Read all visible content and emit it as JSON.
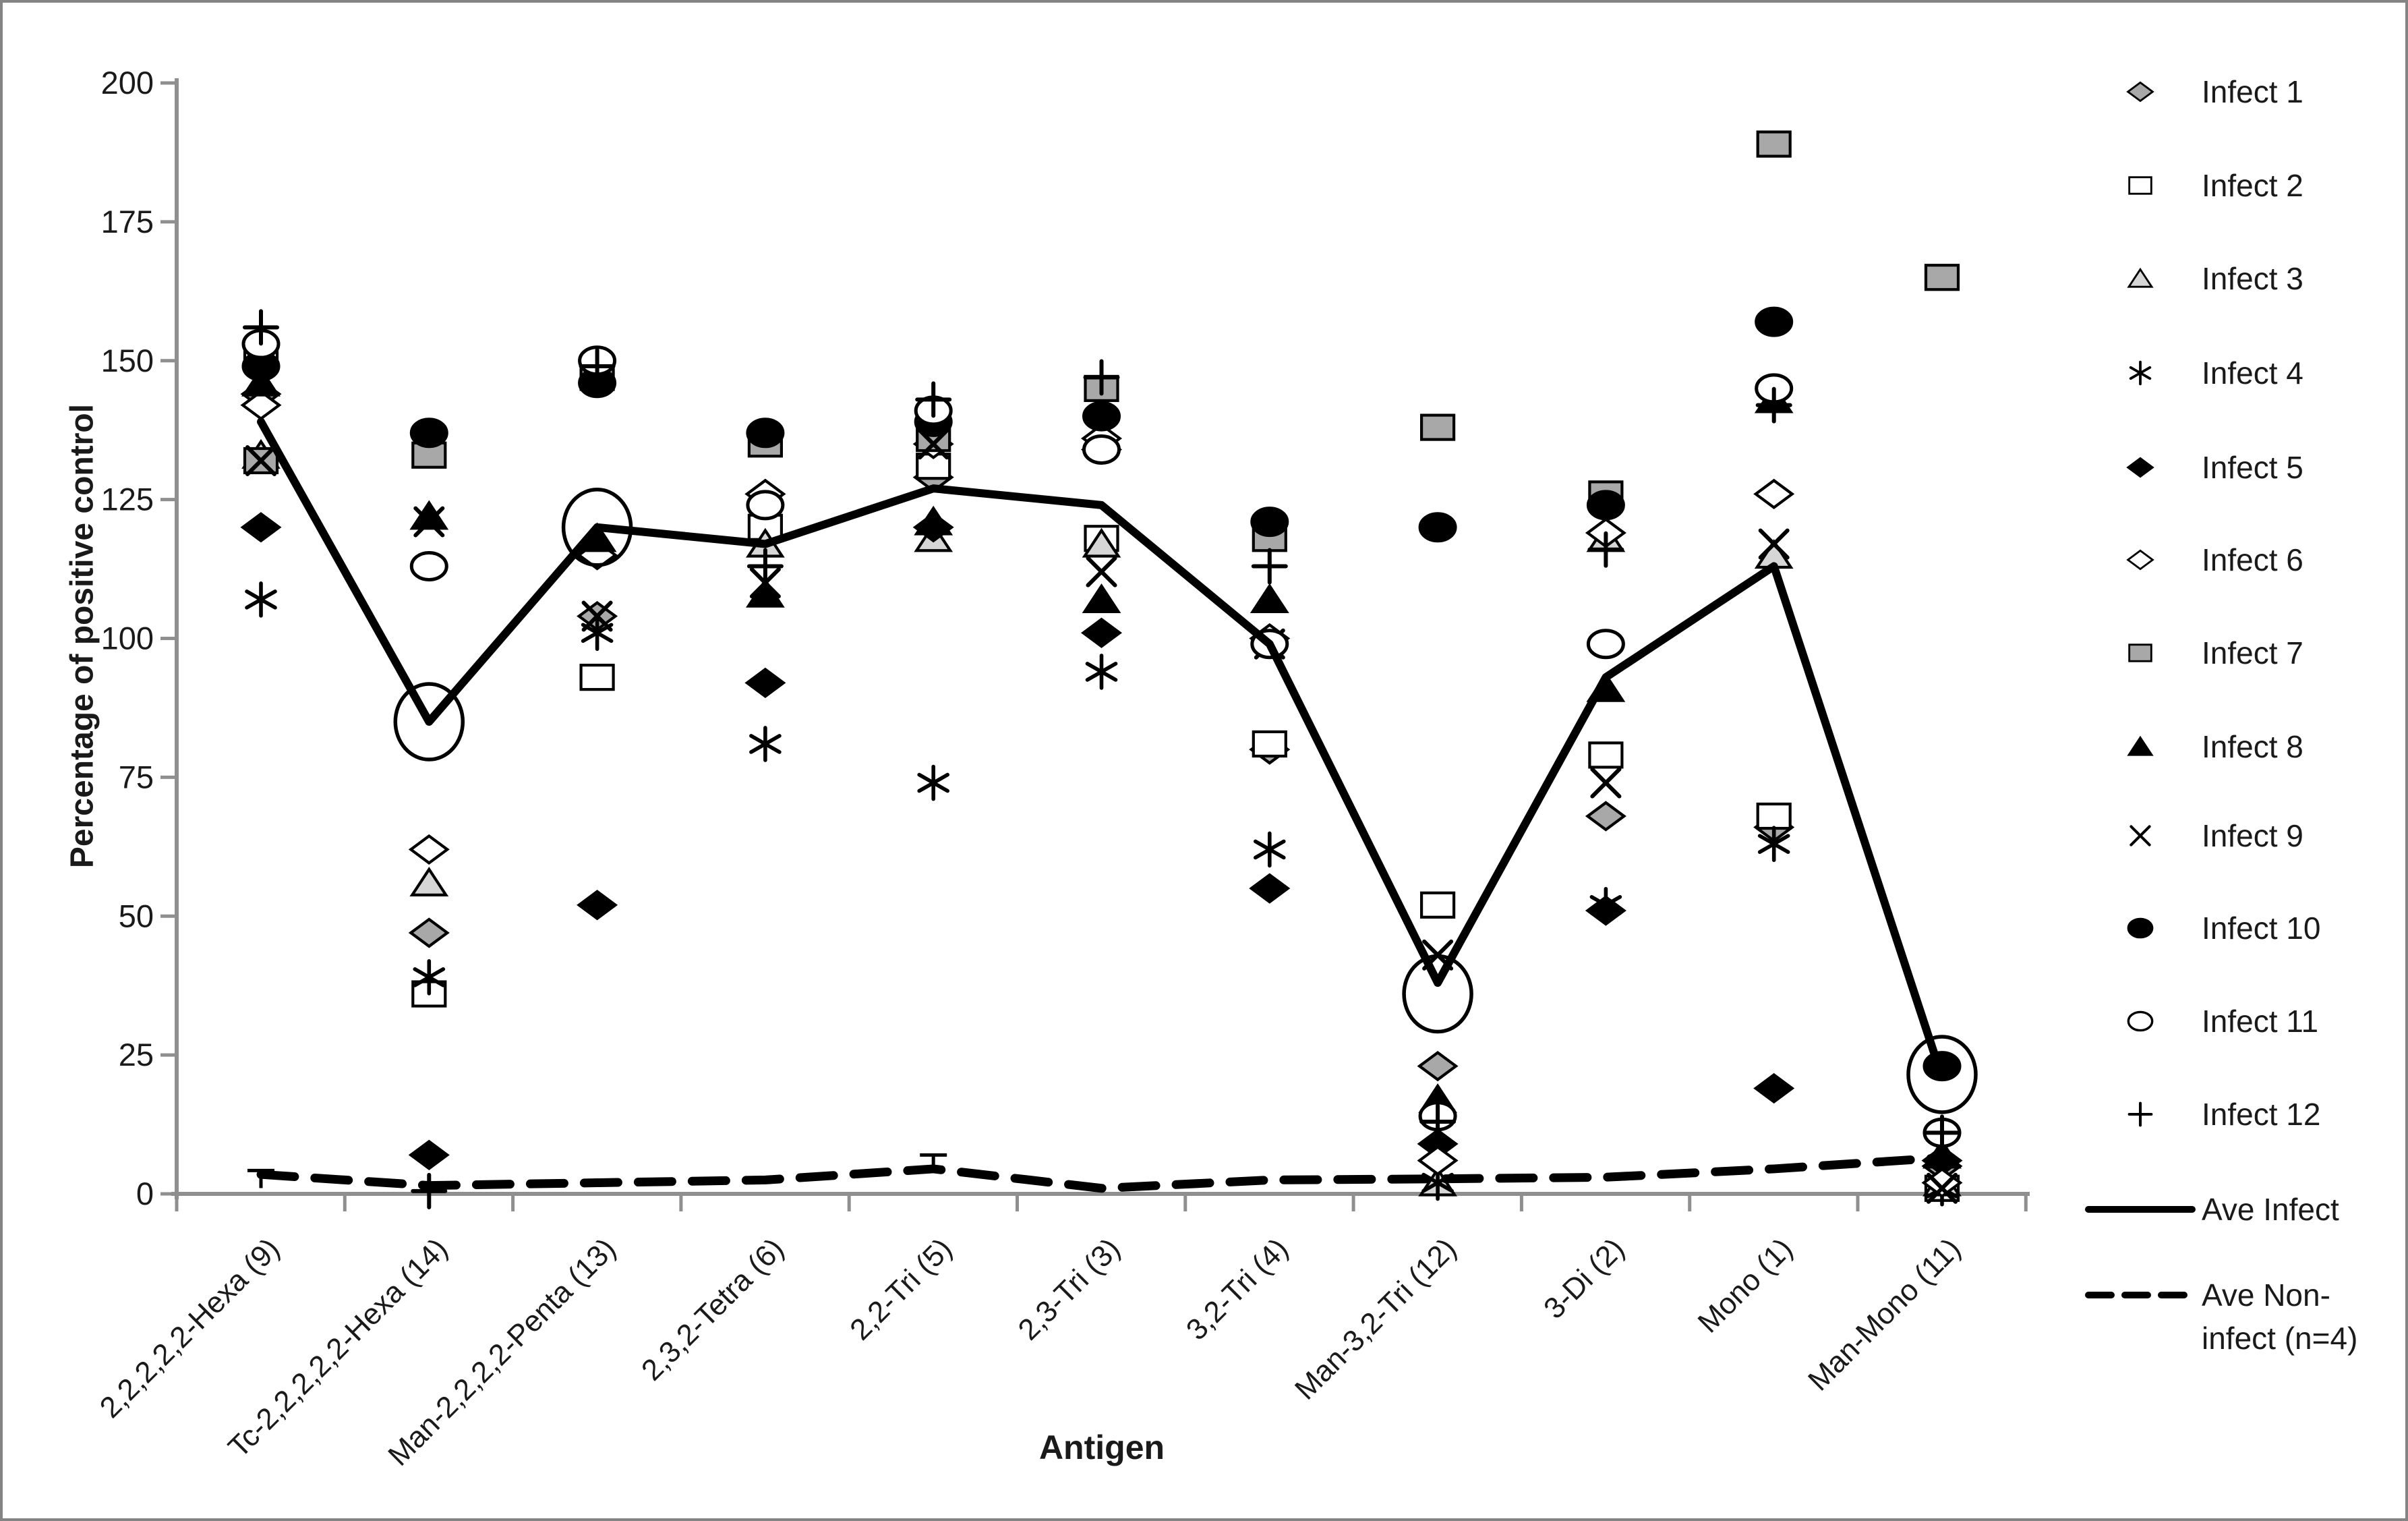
{
  "figure": {
    "y_axis_title": "Percentage of positive control",
    "x_axis_title": "Antigen"
  },
  "legend": {
    "items": [
      {
        "label": "Infect 1"
      },
      {
        "label": "Infect 2"
      },
      {
        "label": "Infect 3"
      },
      {
        "label": "Infect 4"
      },
      {
        "label": "Infect 5"
      },
      {
        "label": "Infect 6"
      },
      {
        "label": "Infect 7"
      },
      {
        "label": "Infect 8"
      },
      {
        "label": "Infect 9"
      },
      {
        "label": "Infect 10"
      },
      {
        "label": "Infect 11"
      },
      {
        "label": "Infect 12"
      },
      {
        "label": "Ave Infect"
      },
      {
        "label": "Ave Non-infect (n=4)",
        "line1": "Ave Non-",
        "line2": "infect (n=4)"
      }
    ]
  },
  "chart_data": {
    "type": "scatter",
    "title": "",
    "xlabel": "Antigen",
    "ylabel": "Percentage of positive control",
    "ylim": [
      0,
      200
    ],
    "yticks": [
      0,
      25,
      50,
      75,
      100,
      125,
      150,
      175,
      200
    ],
    "grid": false,
    "legend_position": "right",
    "categories": [
      "2,2,2,2,2-Hexa (9)",
      "Tc-2,2,2,2,2-Hexa (14)",
      "Man-2,2,2,2-Penta (13)",
      "2,3,2-Tetra (6)",
      "2,2-Tri (5)",
      "2,3-Tri (3)",
      "3,2-Tri (4)",
      "Man-3,2-Tri (12)",
      "3-Di (2)",
      "Mono (1)",
      "Man-Mono (11)"
    ],
    "series": [
      {
        "name": "Infect 1",
        "marker": "diamond",
        "fill": "gray",
        "values": [
          144,
          47,
          104,
          126,
          129,
          134,
          80,
          23,
          68,
          66,
          5
        ]
      },
      {
        "name": "Infect 2",
        "marker": "square",
        "fill": "white",
        "values": [
          151,
          36,
          93,
          120,
          131,
          118,
          81,
          52,
          79,
          68,
          1
        ]
      },
      {
        "name": "Infect 3",
        "marker": "triangle",
        "fill": "lightgray",
        "values": [
          133,
          56,
          117,
          117,
          118,
          117,
          107,
          2,
          118,
          115,
          2
        ]
      },
      {
        "name": "Infect 4",
        "marker": "asterisk",
        "fill": "black",
        "values": [
          107,
          39,
          101,
          81,
          74,
          94,
          62,
          2,
          52,
          63,
          1
        ]
      },
      {
        "name": "Infect 5",
        "marker": "diamond",
        "fill": "black",
        "values": [
          120,
          7,
          52,
          92,
          120,
          101,
          55,
          9,
          51,
          19,
          6
        ]
      },
      {
        "name": "Infect 6",
        "marker": "diamond",
        "fill": "white",
        "values": [
          142,
          62,
          115,
          126,
          135,
          136,
          100,
          6,
          119,
          126,
          2
        ]
      },
      {
        "name": "Infect 7",
        "marker": "square",
        "fill": "gray",
        "values": [
          132,
          133,
          147,
          135,
          136,
          145,
          118,
          138,
          126,
          189,
          165
        ]
      },
      {
        "name": "Infect 8",
        "marker": "triangle",
        "fill": "black",
        "values": [
          146,
          122,
          118,
          108,
          121,
          107,
          107,
          17,
          91,
          143,
          7
        ]
      },
      {
        "name": "Infect 9",
        "marker": "x",
        "fill": "black",
        "values": [
          132,
          121,
          104,
          110,
          135,
          112,
          99,
          43,
          74,
          117,
          1
        ]
      },
      {
        "name": "Infect 10",
        "marker": "circle",
        "fill": "black",
        "values": [
          149,
          137,
          146,
          137,
          139,
          140,
          121,
          120,
          124,
          157,
          23
        ]
      },
      {
        "name": "Infect 11",
        "marker": "circle",
        "fill": "white",
        "values": [
          153,
          113,
          150,
          124,
          141,
          134,
          99,
          14,
          99,
          145,
          11
        ]
      },
      {
        "name": "Infect 12",
        "marker": "plus",
        "fill": "black",
        "values": [
          156,
          0.5,
          149,
          113,
          143,
          147,
          113,
          13,
          116,
          142,
          11
        ]
      }
    ],
    "lines": [
      {
        "name": "Ave Infect",
        "style": "solid",
        "values": [
          139,
          85,
          120,
          117,
          127,
          124,
          99,
          38,
          93,
          113,
          21
        ]
      },
      {
        "name": "Ave Non-infect (n=4)",
        "style": "dashed",
        "values": [
          3.5,
          1.5,
          2,
          2.5,
          4.5,
          1,
          2.5,
          2.7,
          3,
          4.5,
          6.5
        ]
      }
    ],
    "annotations": {
      "highlight_circles": [
        {
          "category_index": 1,
          "value": 85
        },
        {
          "category_index": 2,
          "value": 120
        },
        {
          "category_index": 7,
          "value": 36
        },
        {
          "category_index": 10,
          "value": 21.5
        }
      ],
      "error_caps": [
        {
          "category_index": 0,
          "value": 4.2
        },
        {
          "category_index": 4,
          "value": 7
        }
      ]
    }
  }
}
